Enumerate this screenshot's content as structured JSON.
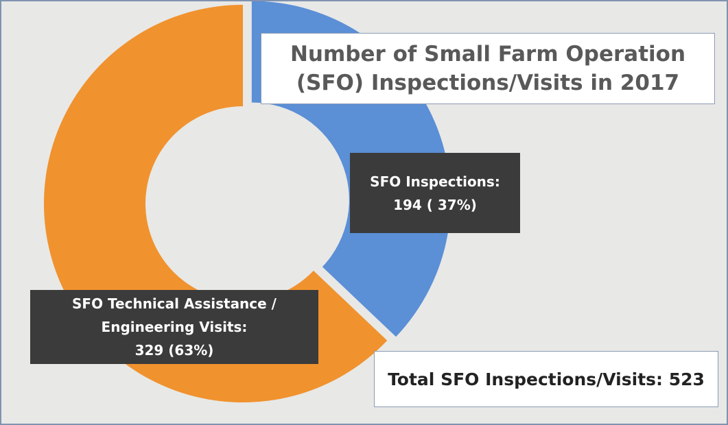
{
  "chart_data": {
    "type": "donut",
    "title": "Number of Small Farm Operation (SFO) Inspections/Visits in 2017",
    "categories": [
      "SFO Inspections:",
      "SFO Technical Assistance / Engineering Visits:"
    ],
    "values": [
      194,
      329
    ],
    "value_labels": [
      "194 ( 37%)",
      "329 (63%)"
    ],
    "colors": [
      "#5b8fd6",
      "#f0922e"
    ],
    "annotation": "Total SFO Inspections/Visits: 523"
  }
}
